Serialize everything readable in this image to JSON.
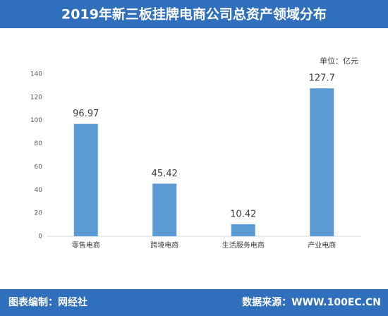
{
  "chart_data": {
    "type": "bar",
    "title": "2019年新三板挂牌电商公司总资产领域分布",
    "unit_label": "单位：亿元",
    "categories": [
      "零售电商",
      "跨境电商",
      "生活服务电商",
      "产业电商"
    ],
    "values": [
      96.97,
      45.42,
      10.42,
      127.7
    ],
    "color": "#5b9bd5",
    "ylim": [
      0,
      140
    ],
    "yticks": [
      0,
      20,
      40,
      60,
      80,
      100,
      120,
      140
    ],
    "grid": false,
    "credit": "图表编制：网经社",
    "source": "数据来源：WWW.100EC.CN"
  }
}
